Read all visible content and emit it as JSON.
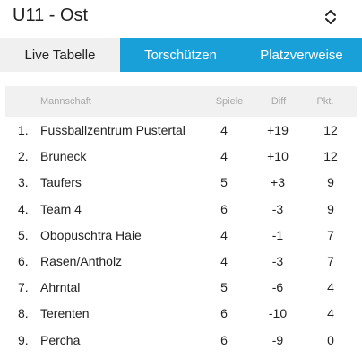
{
  "header": {
    "title": "U11 - Ost",
    "select_icon": "chevron-up-down-icon"
  },
  "tabs": [
    {
      "label": "Live Tabelle",
      "active": true
    },
    {
      "label": "Torschützen",
      "active": false
    },
    {
      "label": "Platzverweise",
      "active": false
    }
  ],
  "colors": {
    "accent": "#1aa0d8",
    "active_tab_bg": "#f0f0f0",
    "table_header_bg": "#f1f1f1"
  },
  "table": {
    "columns": {
      "team": "Mannschaft",
      "games": "Spiele",
      "diff": "Diff",
      "points": "Pkt."
    },
    "rows": [
      {
        "rank": "1.",
        "team": "Fussballzentrum Pustertal",
        "games": "4",
        "diff": "+19",
        "points": "12"
      },
      {
        "rank": "2.",
        "team": "Bruneck",
        "games": "4",
        "diff": "+10",
        "points": "12"
      },
      {
        "rank": "3.",
        "team": "Taufers",
        "games": "5",
        "diff": "+3",
        "points": "9"
      },
      {
        "rank": "4.",
        "team": "Team 4",
        "games": "6",
        "diff": "-3",
        "points": "9"
      },
      {
        "rank": "5.",
        "team": "Obopuschtra Haie",
        "games": "4",
        "diff": "-1",
        "points": "7"
      },
      {
        "rank": "6.",
        "team": "Rasen/Antholz",
        "games": "4",
        "diff": "-3",
        "points": "7"
      },
      {
        "rank": "7.",
        "team": "Ahrntal",
        "games": "5",
        "diff": "-6",
        "points": "4"
      },
      {
        "rank": "8.",
        "team": "Terenten",
        "games": "6",
        "diff": "-10",
        "points": "4"
      },
      {
        "rank": "9.",
        "team": "Percha",
        "games": "6",
        "diff": "-9",
        "points": "0"
      }
    ]
  }
}
